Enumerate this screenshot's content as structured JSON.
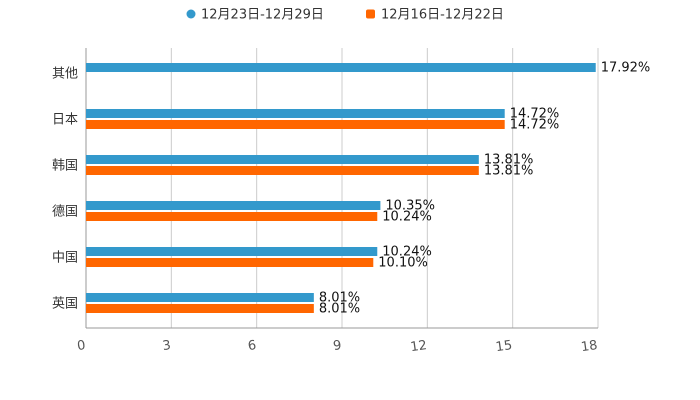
{
  "chart_data": {
    "type": "bar",
    "orientation": "horizontal",
    "title": "",
    "xlabel": "",
    "ylabel": "",
    "xlim": [
      0,
      18
    ],
    "x_ticks": [
      0,
      3,
      6,
      9,
      12,
      15,
      18
    ],
    "x_tick_labels": [
      "0",
      "3",
      "6",
      "9",
      "12",
      "15",
      "18"
    ],
    "grid": true,
    "legend_position": "top-center",
    "categories": [
      "其他",
      "日本",
      "韩国",
      "德国",
      "中国",
      "英国"
    ],
    "series": [
      {
        "name": "12月23日-12月29日",
        "color": "#3399cc",
        "values": [
          17.92,
          14.72,
          13.81,
          10.35,
          10.24,
          8.01
        ],
        "labels": [
          "17.92%",
          "14.72%",
          "13.81%",
          "10.35%",
          "10.24%",
          "8.01%"
        ]
      },
      {
        "name": "12月16日-12月22日",
        "color": "#ff6600",
        "values": [
          null,
          14.72,
          13.81,
          10.24,
          10.1,
          8.01
        ],
        "labels": [
          null,
          "14.72%",
          "13.81%",
          "10.24%",
          "10.10%",
          "8.01%"
        ]
      }
    ]
  }
}
